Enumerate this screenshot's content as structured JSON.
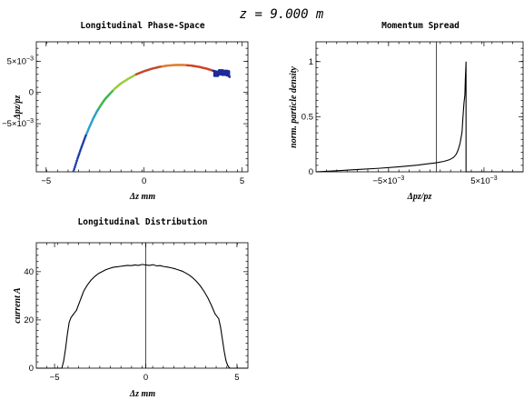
{
  "figure": {
    "title": "z = 9.000 m"
  },
  "chart_data": [
    {
      "id": "phase",
      "type": "scatter",
      "title": "Longitudinal Phase-Space",
      "xlabel": "Δz mm",
      "ylabel": "Δpz/pz",
      "xlim": [
        -5.5,
        5.3
      ],
      "ylim": [
        -0.0127,
        0.0081
      ],
      "xticks": [
        -5,
        0,
        5
      ],
      "xticklabels": [
        "−5",
        "0",
        "5"
      ],
      "yticks": [
        0.005,
        0,
        -0.005
      ],
      "yticklabels": [
        [
          "5×10",
          "−3"
        ],
        [
          "0",
          ""
        ],
        [
          "−5×10",
          "−3"
        ]
      ],
      "series": [
        {
          "color_segments": [
            "#1c3aa8",
            "#2aa0c8",
            "#3fb850",
            "#9aca3c",
            "#c04a2a",
            "#e07a30",
            "#d04020",
            "#1c2a9a"
          ],
          "x": [
            -3.6,
            -3.4,
            -3.2,
            -3.0,
            -2.8,
            -2.6,
            -2.4,
            -2.2,
            -2.0,
            -1.8,
            -1.5,
            -1.2,
            -0.8,
            -0.4,
            0.0,
            0.4,
            0.8,
            1.2,
            1.6,
            2.0,
            2.4,
            2.8,
            3.2,
            3.6,
            3.9,
            4.2,
            4.4
          ],
          "y": [
            -0.0126,
            -0.0106,
            -0.0088,
            -0.0071,
            -0.0056,
            -0.0042,
            -0.003,
            -0.002,
            -0.0011,
            -0.0004,
            0.0006,
            0.0014,
            0.0022,
            0.0029,
            0.0034,
            0.0038,
            0.0041,
            0.0043,
            0.0044,
            0.0044,
            0.0043,
            0.0041,
            0.0038,
            0.0034,
            0.0032,
            0.003,
            0.0024
          ]
        }
      ]
    },
    {
      "id": "momentum",
      "type": "line",
      "title": "Momentum Spread",
      "xlabel": "Δpz/pz",
      "ylabel": "norm. particle density",
      "xlim": [
        -0.0126,
        0.0091
      ],
      "ylim": [
        0,
        1.18
      ],
      "xticks": [
        -0.005,
        0.005
      ],
      "xticklabels": [
        [
          "−5×10",
          "−3"
        ],
        [
          "5×10",
          "−3"
        ]
      ],
      "zero_line": 0,
      "yticks": [
        0,
        0.5,
        1
      ],
      "yticklabels": [
        "0",
        "0.5",
        "1"
      ],
      "series": [
        {
          "x": [
            -0.0126,
            -0.01,
            -0.008,
            -0.006,
            -0.004,
            -0.002,
            -0.001,
            0.0,
            0.0008,
            0.0014,
            0.0018,
            0.0021,
            0.0023,
            0.0025,
            0.0027,
            0.0028,
            0.0029,
            0.00295,
            0.003,
            0.00305,
            0.0031,
            0.00312,
            0.00312,
            0.0032,
            0.0091
          ],
          "y": [
            0.0,
            0.012,
            0.022,
            0.032,
            0.045,
            0.06,
            0.072,
            0.082,
            0.095,
            0.11,
            0.13,
            0.16,
            0.2,
            0.26,
            0.36,
            0.5,
            0.62,
            0.66,
            0.7,
            0.85,
            0.95,
            1.0,
            0.0,
            0.0,
            0.0
          ]
        }
      ]
    },
    {
      "id": "distribution",
      "type": "line",
      "title": "Longitudinal Distribution",
      "xlabel": "Δz mm",
      "ylabel": "current A",
      "xlim": [
        -6.0,
        5.6
      ],
      "ylim": [
        0,
        52
      ],
      "xticks": [
        -5,
        0,
        5
      ],
      "xticklabels": [
        "−5",
        "0",
        "5"
      ],
      "zero_line": 0,
      "yticks": [
        0,
        20,
        40
      ],
      "yticklabels": [
        "0",
        "20",
        "40"
      ],
      "series": [
        {
          "x": [
            -6.0,
            -4.6,
            -4.5,
            -4.4,
            -4.3,
            -4.2,
            -4.1,
            -4.0,
            -3.9,
            -3.8,
            -3.7,
            -3.6,
            -3.5,
            -3.4,
            -3.2,
            -3.0,
            -2.8,
            -2.6,
            -2.4,
            -2.2,
            -2.0,
            -1.8,
            -1.6,
            -1.4,
            -1.2,
            -1.0,
            -0.8,
            -0.6,
            -0.4,
            -0.2,
            0.0,
            0.2,
            0.4,
            0.6,
            0.8,
            1.0,
            1.2,
            1.4,
            1.6,
            1.8,
            2.0,
            2.2,
            2.4,
            2.6,
            2.8,
            3.0,
            3.2,
            3.4,
            3.6,
            3.8,
            3.9,
            4.0,
            4.1,
            4.2,
            4.3,
            4.4,
            4.5,
            4.6,
            5.6
          ],
          "y": [
            0,
            0,
            3,
            8,
            14,
            19,
            21,
            22,
            23,
            24,
            26,
            28,
            30,
            32,
            34.5,
            36.5,
            38,
            39.2,
            40,
            40.8,
            41.3,
            41.8,
            42.0,
            42.2,
            42.4,
            42.6,
            42.5,
            42.8,
            42.6,
            43.0,
            42.8,
            42.6,
            42.9,
            42.4,
            42.5,
            42.1,
            41.9,
            41.6,
            41.2,
            40.7,
            40.2,
            39.4,
            38.5,
            37.3,
            35.8,
            34.0,
            31.8,
            29.2,
            26.0,
            22.5,
            21.5,
            20.5,
            17,
            12,
            7,
            3,
            1,
            0,
            0
          ]
        }
      ]
    }
  ]
}
